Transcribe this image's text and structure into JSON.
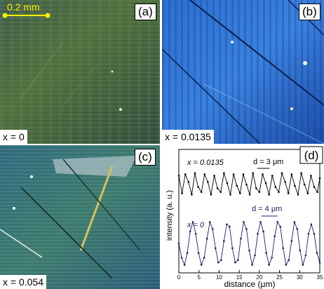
{
  "panels": {
    "a": {
      "tag": "(a)",
      "x_label": "x = 0",
      "scale_bar": "0.2 mm"
    },
    "b": {
      "tag": "(b)",
      "x_label": "x = 0.0135"
    },
    "c": {
      "tag": "(c)",
      "x_label": "x = 0.054"
    },
    "d": {
      "tag": "(d)"
    }
  },
  "colors": {
    "scale_bar": "#ffee00",
    "series_top": "#000000",
    "series_bottom": "#1c1c6e"
  },
  "chart_data": {
    "type": "line",
    "xlabel": "distance (μm)",
    "ylabel": "intensity (a. u.)",
    "xlim": [
      0,
      35
    ],
    "x_ticks": [
      "0",
      "5",
      "10",
      "15",
      "20",
      "25",
      "30",
      "35"
    ],
    "grid": false,
    "legend": "none",
    "series": [
      {
        "name": "x = 0.0135",
        "period_label": "d = 3 μm",
        "x": [
          0.0,
          0.8,
          1.6,
          2.4,
          3.2,
          4.0,
          4.8,
          5.6,
          6.4,
          7.2,
          8.0,
          8.8,
          9.6,
          10.4,
          11.2,
          12.0,
          12.8,
          13.6,
          14.4,
          15.2,
          16.0,
          16.8,
          17.6,
          18.4,
          19.2,
          20.0,
          20.8,
          21.6,
          22.4,
          23.2,
          24.0,
          24.8,
          25.6,
          26.4,
          27.2,
          28.0,
          28.8,
          29.6,
          30.4,
          31.2,
          32.0,
          32.8,
          33.6,
          34.4,
          35.0
        ],
        "y": [
          0.85,
          0.15,
          0.9,
          0.6,
          0.1,
          0.95,
          0.4,
          0.2,
          0.9,
          0.6,
          0.1,
          0.85,
          0.35,
          0.2,
          0.95,
          0.55,
          0.1,
          0.9,
          0.45,
          0.15,
          0.9,
          0.5,
          0.1,
          0.95,
          0.35,
          0.2,
          0.9,
          0.55,
          0.1,
          0.85,
          0.4,
          0.2,
          0.95,
          0.6,
          0.15,
          0.9,
          0.45,
          0.1,
          0.95,
          0.5,
          0.15,
          0.85,
          0.4,
          0.2,
          0.75
        ]
      },
      {
        "name": "x = 0",
        "period_label": "d = 4 μm",
        "x": [
          0.0,
          0.7,
          1.4,
          2.1,
          2.8,
          3.5,
          4.2,
          4.9,
          5.6,
          6.3,
          7.0,
          7.7,
          8.4,
          9.1,
          9.8,
          10.5,
          11.2,
          11.9,
          12.6,
          13.3,
          14.0,
          14.7,
          15.4,
          16.1,
          16.8,
          17.5,
          18.2,
          18.9,
          19.6,
          20.3,
          21.0,
          21.7,
          22.4,
          23.1,
          23.8,
          24.5,
          25.2,
          25.9,
          26.6,
          27.3,
          28.0,
          28.7,
          29.4,
          30.1,
          30.8,
          31.5,
          32.2,
          32.9,
          33.6,
          34.3,
          35.0
        ],
        "y": [
          0.5,
          0.2,
          0.05,
          0.3,
          0.75,
          0.95,
          0.7,
          0.3,
          0.05,
          0.2,
          0.6,
          0.95,
          0.8,
          0.4,
          0.1,
          0.15,
          0.55,
          0.9,
          0.85,
          0.4,
          0.1,
          0.15,
          0.6,
          0.95,
          0.8,
          0.35,
          0.05,
          0.25,
          0.7,
          0.95,
          0.75,
          0.3,
          0.05,
          0.2,
          0.65,
          0.95,
          0.85,
          0.4,
          0.05,
          0.15,
          0.55,
          0.95,
          0.8,
          0.35,
          0.05,
          0.25,
          0.7,
          0.9,
          0.7,
          0.3,
          0.1
        ]
      }
    ]
  }
}
